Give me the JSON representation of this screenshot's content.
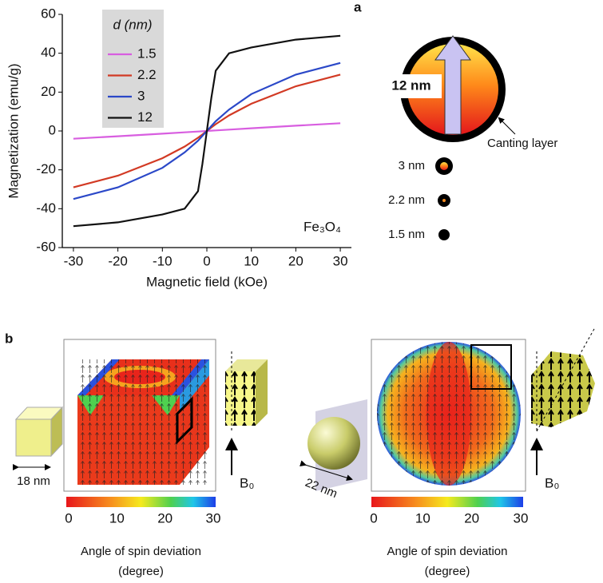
{
  "chart_data": {
    "type": "line",
    "x": [
      -30,
      -20,
      -10,
      -5,
      -2,
      -1,
      0,
      1,
      2,
      5,
      10,
      20,
      30
    ],
    "xlim": [
      -32.5,
      32.5
    ],
    "xticks": [
      -30,
      -20,
      -10,
      0,
      10,
      20,
      30
    ],
    "ylim": [
      -60,
      60
    ],
    "yticks": [
      -60,
      -40,
      -20,
      0,
      20,
      40,
      60
    ],
    "xlabel": "Magnetic field (kOe)",
    "ylabel": "Magnetization (emu/g)",
    "legend_title": "d (nm)",
    "annotation": "Fe₃O₄",
    "series": [
      {
        "name": "1.5",
        "color": "#d85ee0",
        "values": [
          -4,
          -2.7,
          -1.4,
          -0.7,
          -0.3,
          -0.15,
          0,
          0.15,
          0.3,
          0.7,
          1.4,
          2.7,
          4
        ]
      },
      {
        "name": "2.2",
        "color": "#d23a24",
        "values": [
          -29,
          -23,
          -14,
          -8,
          -3.5,
          -1.8,
          0,
          1.8,
          3.5,
          8,
          14,
          23,
          29
        ]
      },
      {
        "name": "3",
        "color": "#2b48c8",
        "values": [
          -35,
          -29,
          -19,
          -11,
          -5,
          -2.5,
          0,
          2.5,
          5,
          11,
          19,
          29,
          35
        ]
      },
      {
        "name": "12",
        "color": "#111111",
        "values": [
          -49,
          -47,
          -43,
          -40,
          -31,
          -17,
          0,
          17,
          31,
          40,
          43,
          47,
          49
        ]
      }
    ]
  },
  "panel_labels": [
    "a",
    "b"
  ],
  "diagram_a": {
    "core_label": "12 nm",
    "shell_label": "Canting layer",
    "sizes": [
      "3 nm",
      "2.2 nm",
      "1.5 nm"
    ]
  },
  "panel_b": {
    "cube": {
      "size": "18 nm",
      "field": "B₀"
    },
    "sphere": {
      "size": "22 nm",
      "field": "B₀"
    },
    "colorbar": {
      "ticks": [
        0,
        10,
        20,
        30
      ],
      "label": "Angle of spin deviation",
      "unit": "(degree)"
    }
  }
}
